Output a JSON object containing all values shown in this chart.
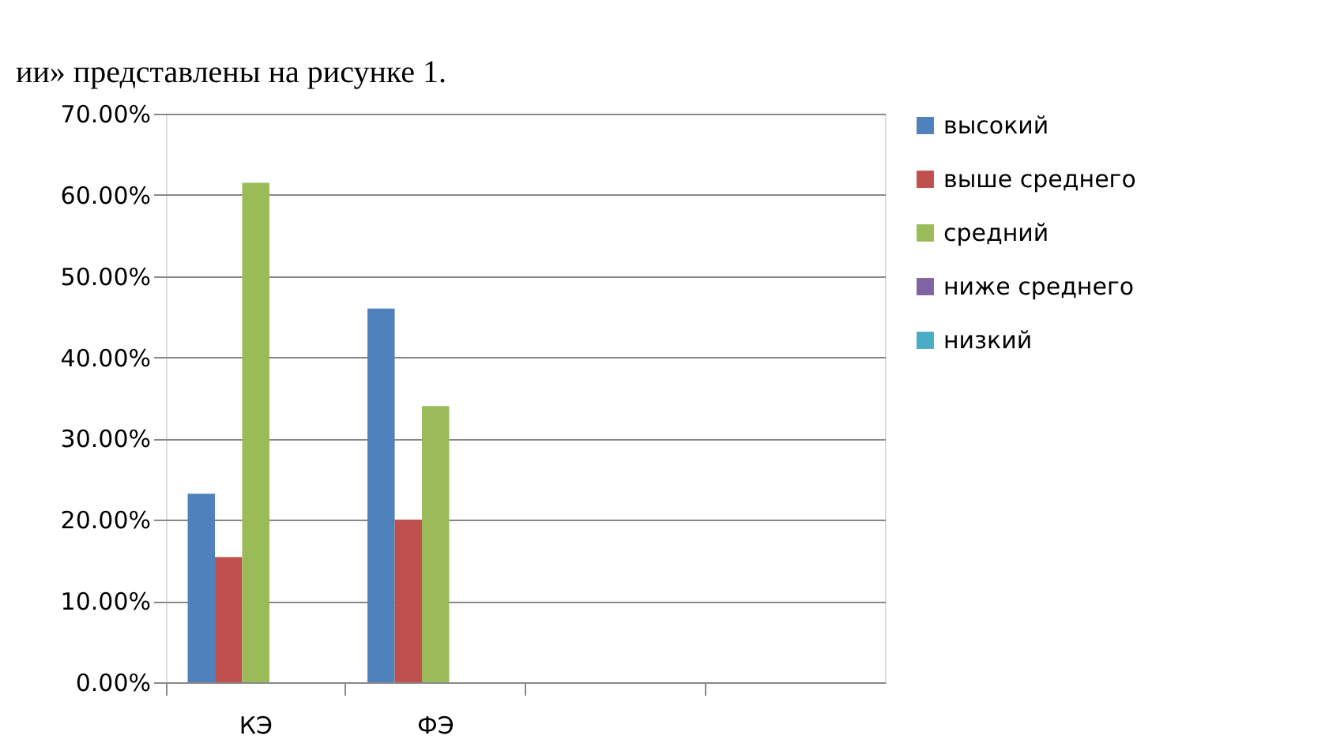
{
  "chart_data": {
    "type": "bar",
    "annotations": [
      "ии» представлены на рисунке 1."
    ],
    "categories": [
      "КЭ",
      "ФЭ",
      null,
      null
    ],
    "series": [
      {
        "name": "высокий",
        "color": "#4f81bd",
        "values": [
          23.2,
          46,
          null,
          null
        ]
      },
      {
        "name": "выше среднего",
        "color": "#c0504d",
        "values": [
          15.4,
          20,
          null,
          null
        ]
      },
      {
        "name": "средний",
        "color": "#9bbb59",
        "values": [
          61.5,
          34,
          null,
          null
        ]
      },
      {
        "name": "ниже среднего",
        "color": "#8064a2",
        "values": [
          0,
          0,
          null,
          null
        ]
      },
      {
        "name": "низкий",
        "color": "#4bacc6",
        "values": [
          0,
          0,
          null,
          null
        ]
      }
    ],
    "ylim": [
      0,
      70
    ],
    "yticks": [
      {
        "value": 0,
        "label": "0.00%"
      },
      {
        "value": 10,
        "label": "10.00%"
      },
      {
        "value": 20,
        "label": "20.00%"
      },
      {
        "value": 30,
        "label": "30.00%"
      },
      {
        "value": 40,
        "label": "40.00%"
      },
      {
        "value": 50,
        "label": "50.00%"
      },
      {
        "value": 60,
        "label": "60.00%"
      },
      {
        "value": 70,
        "label": "70.00%"
      }
    ],
    "grid": "y",
    "legend": "right"
  }
}
